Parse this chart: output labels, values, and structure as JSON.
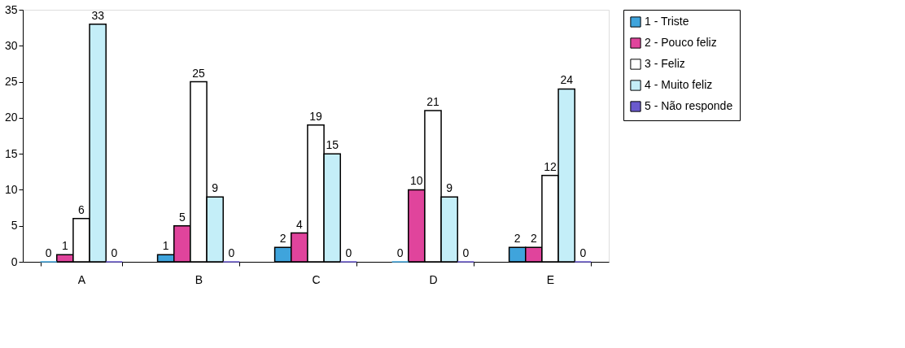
{
  "chart_data": {
    "type": "bar",
    "categories": [
      "A",
      "B",
      "C",
      "D",
      "E"
    ],
    "series": [
      {
        "name": "1 - Triste",
        "color": "#3fa4dc",
        "values": [
          0,
          1,
          2,
          0,
          2
        ]
      },
      {
        "name": "2 - Pouco feliz",
        "color": "#e0449c",
        "values": [
          1,
          5,
          4,
          10,
          2
        ]
      },
      {
        "name": "3 - Feliz",
        "color": "#ffffff",
        "values": [
          6,
          25,
          19,
          21,
          12
        ]
      },
      {
        "name": "4 - Muito feliz",
        "color": "#c4eef8",
        "values": [
          33,
          9,
          15,
          9,
          24
        ]
      },
      {
        "name": "5 - Não responde",
        "color": "#6a5acd",
        "values": [
          0,
          0,
          0,
          0,
          0
        ]
      }
    ],
    "ylim": [
      0,
      35
    ],
    "yticks": [
      0,
      5,
      10,
      15,
      20,
      25,
      30,
      35
    ],
    "data_labels": true,
    "grid": false,
    "legend": "right"
  }
}
